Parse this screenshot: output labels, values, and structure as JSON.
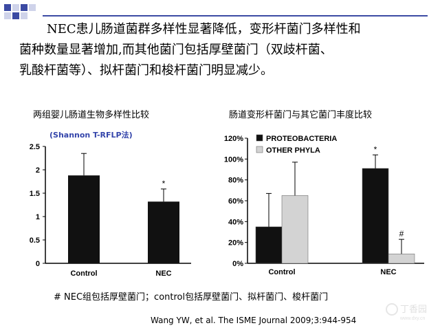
{
  "heading": {
    "lines": [
      "NEC患儿肠道菌群多样性显著降低，变形杆菌门多样性和",
      "菌种数量显著增加,而其他菌门包括厚壁菌门（双歧杆菌、",
      "乳酸杆菌等）、拟杆菌门和梭杆菌门明显减少。"
    ]
  },
  "left_chart": {
    "title": "两组婴儿肠道生物多样性比较",
    "subtitle": "(Shannon T-RFLP法)"
  },
  "right_chart": {
    "title": "肠道变形杆菌门与其它菌门丰度比较"
  },
  "footnote": "# NEC组包括厚壁菌门；control包括厚壁菌门、拟杆菌门、梭杆菌门",
  "citation": "Wang YW, et al.    The ISME Journal   2009;3:944-954",
  "watermark": {
    "text": "丁香园",
    "sub": "www.dxy.cn"
  },
  "chart_data": [
    {
      "type": "bar",
      "categories": [
        "Control",
        "NEC"
      ],
      "values": [
        1.88,
        1.32
      ],
      "errors": [
        0.47,
        0.27
      ],
      "markers": [
        "",
        "*"
      ],
      "ylim": [
        0,
        2.5
      ],
      "yticks": [
        "0",
        "0.5",
        "1",
        "1.5",
        "2",
        "2.5"
      ],
      "ytick_values": [
        0,
        0.5,
        1,
        1.5,
        2,
        2.5
      ],
      "colors": [
        "#111111"
      ]
    },
    {
      "type": "bar",
      "categories": [
        "Control",
        "NEC"
      ],
      "series": [
        {
          "name": "PROTEOBACTERIA",
          "values": [
            35,
            91
          ],
          "errors": [
            32,
            13
          ],
          "markers": [
            "",
            "*"
          ],
          "color": "#111111"
        },
        {
          "name": "OTHER PHYLA",
          "values": [
            65,
            9
          ],
          "errors": [
            32,
            14
          ],
          "markers": [
            "",
            "#"
          ],
          "color": "#d3d3d3"
        }
      ],
      "ylim": [
        0,
        120
      ],
      "yticks": [
        "0%",
        "20%",
        "40%",
        "60%",
        "80%",
        "100%",
        "120%"
      ],
      "ytick_values": [
        0,
        20,
        40,
        60,
        80,
        100,
        120
      ],
      "legend": "top-left"
    }
  ]
}
